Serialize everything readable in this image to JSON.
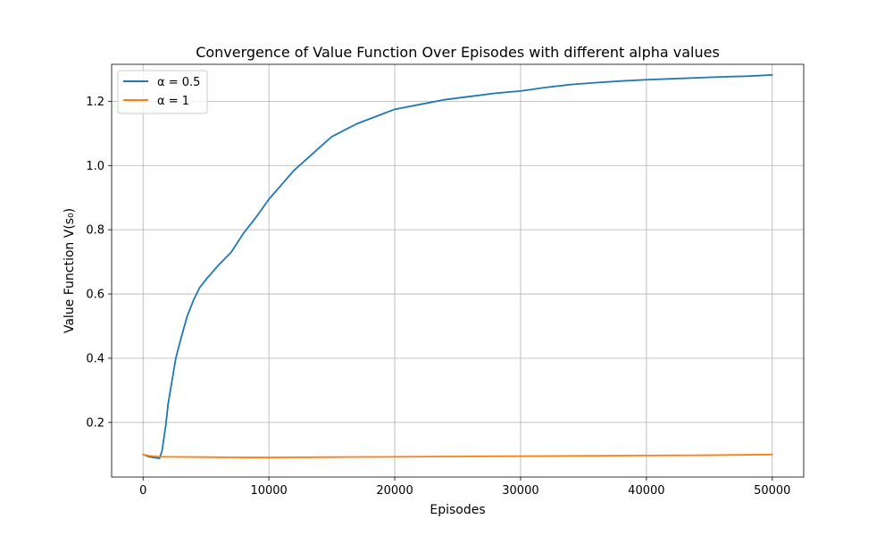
{
  "chart_data": {
    "type": "line",
    "title": "Convergence of Value Function Over Episodes with different alpha values",
    "xlabel": "Episodes",
    "ylabel": "Value Function V(s₀)",
    "xlim": [
      -2500,
      52500
    ],
    "ylim": [
      0.03,
      1.315
    ],
    "x_ticks": [
      0,
      10000,
      20000,
      30000,
      40000,
      50000
    ],
    "x_tick_labels": [
      "0",
      "10000",
      "20000",
      "30000",
      "40000",
      "50000"
    ],
    "y_ticks": [
      0.2,
      0.4,
      0.6,
      0.8,
      1.0,
      1.2
    ],
    "y_tick_labels": [
      "0.2",
      "0.4",
      "0.6",
      "0.8",
      "1.0",
      "1.2"
    ],
    "grid": true,
    "legend_position": "top-left",
    "series": [
      {
        "name": "α = 0.5",
        "color": "#1f77b4",
        "x": [
          0,
          500,
          1000,
          1300,
          1500,
          1800,
          2000,
          2300,
          2600,
          3000,
          3500,
          4000,
          4500,
          5000,
          6000,
          7000,
          8000,
          9000,
          10000,
          11000,
          12000,
          13000,
          14000,
          15000,
          16000,
          17000,
          18000,
          19000,
          20000,
          22000,
          24000,
          26000,
          28000,
          30000,
          32000,
          34000,
          36000,
          38000,
          40000,
          42000,
          44000,
          46000,
          48000,
          50000
        ],
        "values": [
          0.1,
          0.093,
          0.09,
          0.088,
          0.11,
          0.19,
          0.26,
          0.33,
          0.4,
          0.46,
          0.53,
          0.58,
          0.62,
          0.645,
          0.69,
          0.73,
          0.79,
          0.84,
          0.895,
          0.94,
          0.985,
          1.02,
          1.055,
          1.09,
          1.11,
          1.13,
          1.145,
          1.16,
          1.175,
          1.19,
          1.205,
          1.215,
          1.225,
          1.232,
          1.243,
          1.252,
          1.258,
          1.263,
          1.267,
          1.27,
          1.273,
          1.276,
          1.278,
          1.282
        ]
      },
      {
        "name": "α = 1",
        "color": "#ff7f0e",
        "x": [
          0,
          500,
          1000,
          1500,
          2000,
          5000,
          8000,
          10000,
          15000,
          20000,
          25000,
          30000,
          35000,
          40000,
          45000,
          50000
        ],
        "values": [
          0.1,
          0.096,
          0.094,
          0.093,
          0.093,
          0.092,
          0.091,
          0.091,
          0.092,
          0.093,
          0.094,
          0.095,
          0.096,
          0.097,
          0.098,
          0.1
        ]
      }
    ]
  }
}
